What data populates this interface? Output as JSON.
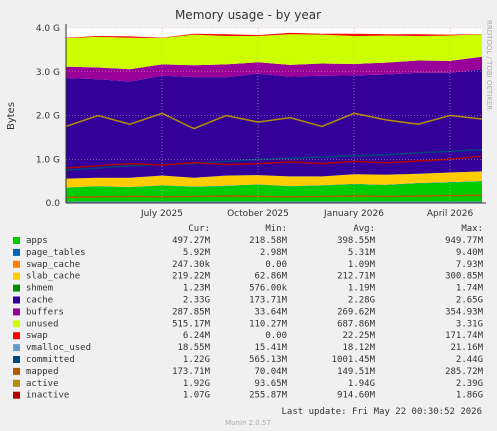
{
  "chart_data": {
    "type": "area",
    "title": "Memory usage - by year",
    "y_label": "Bytes",
    "side_label": "RRDTOOL / TOBI OETIKER",
    "legend_columns": [
      "Cur:",
      "Min:",
      "Avg:",
      "Max:"
    ],
    "last_update": "Last update: Fri May 22 00:30:52 2026",
    "footer": "Munin 2.0.57",
    "grid": true,
    "x": [
      "2025-04",
      "2025-05",
      "2025-06",
      "2025-07",
      "2025-08",
      "2025-09",
      "2025-10",
      "2025-11",
      "2025-12",
      "2026-01",
      "2026-02",
      "2026-03",
      "2026-04",
      "2026-05"
    ],
    "xlim": [
      "2025-04",
      "2026-05"
    ],
    "xticks": [
      {
        "value": "2025-07",
        "label": "July 2025"
      },
      {
        "value": "2025-10",
        "label": "October 2025"
      },
      {
        "value": "2026-01",
        "label": "January 2026"
      },
      {
        "value": "2026-04",
        "label": "April 2026"
      }
    ],
    "ylim": [
      0,
      4000000000
    ],
    "yticks": [
      {
        "value": 0,
        "label": "0.0"
      },
      {
        "value": 1000000000,
        "label": "1.0 G"
      },
      {
        "value": 2000000000,
        "label": "2.0 G"
      },
      {
        "value": 3000000000,
        "label": "3.0 G"
      },
      {
        "value": 4000000000,
        "label": "4.0 G"
      }
    ],
    "series": [
      {
        "name": "apps",
        "color": "#00cc00",
        "stacked": true,
        "cur": "497.27M",
        "min": "218.58M",
        "avg": "398.55M",
        "max": "949.77M",
        "values": [
          350000000,
          380000000,
          360000000,
          400000000,
          370000000,
          390000000,
          420000000,
          380000000,
          400000000,
          430000000,
          410000000,
          450000000,
          470000000,
          497000000
        ]
      },
      {
        "name": "page_tables",
        "color": "#0066b3",
        "stacked": true,
        "cur": "5.92M",
        "min": "2.98M",
        "avg": "5.31M",
        "max": "9.40M",
        "values": [
          5000000,
          5000000,
          5000000,
          5000000,
          5000000,
          5000000,
          5000000,
          5000000,
          5000000,
          6000000,
          6000000,
          6000000,
          6000000,
          6000000
        ]
      },
      {
        "name": "swap_cache",
        "color": "#ff8000",
        "stacked": true,
        "cur": "247.30k",
        "min": "0.00",
        "avg": "1.09M",
        "max": "7.93M",
        "values": [
          1000000,
          1000000,
          1000000,
          1000000,
          1000000,
          1000000,
          1000000,
          1000000,
          1000000,
          1000000,
          1000000,
          1000000,
          1000000,
          250000
        ]
      },
      {
        "name": "slab_cache",
        "color": "#ffcc00",
        "stacked": true,
        "cur": "219.22M",
        "min": "62.86M",
        "avg": "212.71M",
        "max": "300.85M",
        "values": [
          200000000,
          190000000,
          210000000,
          220000000,
          200000000,
          230000000,
          210000000,
          220000000,
          200000000,
          220000000,
          230000000,
          210000000,
          220000000,
          219000000
        ]
      },
      {
        "name": "shmem",
        "color": "#008f00",
        "stacked": true,
        "cur": "1.23M",
        "min": "576.00k",
        "avg": "1.19M",
        "max": "1.74M",
        "values": [
          1200000,
          1200000,
          1200000,
          1200000,
          1200000,
          1200000,
          1200000,
          1200000,
          1200000,
          1200000,
          1200000,
          1200000,
          1200000,
          1230000
        ]
      },
      {
        "name": "cache",
        "color": "#330099",
        "stacked": true,
        "cur": "2.33G",
        "min": "173.71M",
        "avg": "2.28G",
        "max": "2.65G",
        "values": [
          2300000000,
          2250000000,
          2200000000,
          2280000000,
          2300000000,
          2250000000,
          2320000000,
          2280000000,
          2300000000,
          2260000000,
          2290000000,
          2310000000,
          2280000000,
          2330000000
        ]
      },
      {
        "name": "buffers",
        "color": "#990099",
        "stacked": true,
        "cur": "287.85M",
        "min": "33.64M",
        "avg": "269.62M",
        "max": "354.93M",
        "values": [
          260000000,
          270000000,
          280000000,
          260000000,
          270000000,
          290000000,
          260000000,
          270000000,
          280000000,
          260000000,
          270000000,
          280000000,
          270000000,
          288000000
        ]
      },
      {
        "name": "unused",
        "color": "#ccff00",
        "stacked": true,
        "cur": "515.17M",
        "min": "110.27M",
        "avg": "687.86M",
        "max": "3.31G",
        "values": [
          650000000,
          700000000,
          720000000,
          600000000,
          700000000,
          650000000,
          600000000,
          700000000,
          660000000,
          640000000,
          620000000,
          560000000,
          580000000,
          515000000
        ]
      },
      {
        "name": "swap",
        "color": "#ff0000",
        "stacked": true,
        "cur": "6.24M",
        "min": "0.00",
        "avg": "22.25M",
        "max": "171.74M",
        "values": [
          10000000,
          20000000,
          30000000,
          10000000,
          20000000,
          40000000,
          20000000,
          30000000,
          20000000,
          50000000,
          30000000,
          40000000,
          20000000,
          6240000
        ]
      },
      {
        "name": "vmalloc_used",
        "color": "#6699cc",
        "stacked": false,
        "cur": "18.55M",
        "min": "15.41M",
        "avg": "18.12M",
        "max": "21.16M",
        "values": [
          18000000,
          18000000,
          18000000,
          18000000,
          18000000,
          18000000,
          18000000,
          18000000,
          18000000,
          18000000,
          18000000,
          18000000,
          18000000,
          18550000
        ]
      },
      {
        "name": "committed",
        "color": "#00487d",
        "stacked": false,
        "cur": "1.22G",
        "min": "565.13M",
        "avg": "1001.45M",
        "max": "2.44G",
        "values": [
          750000000,
          800000000,
          850000000,
          880000000,
          900000000,
          950000000,
          1000000000,
          1020000000,
          1050000000,
          1080000000,
          1100000000,
          1150000000,
          1180000000,
          1220000000
        ]
      },
      {
        "name": "mapped",
        "color": "#b35a00",
        "stacked": false,
        "cur": "173.71M",
        "min": "70.04M",
        "avg": "149.51M",
        "max": "285.72M",
        "values": [
          130000000,
          140000000,
          150000000,
          140000000,
          150000000,
          160000000,
          150000000,
          140000000,
          150000000,
          160000000,
          150000000,
          160000000,
          170000000,
          174000000
        ]
      },
      {
        "name": "active",
        "color": "#b38f00",
        "stacked": false,
        "cur": "1.92G",
        "min": "93.65M",
        "avg": "1.94G",
        "max": "2.39G",
        "values": [
          1750000000,
          2000000000,
          1800000000,
          2050000000,
          1700000000,
          2000000000,
          1850000000,
          1950000000,
          1750000000,
          2050000000,
          1900000000,
          1800000000,
          2000000000,
          1920000000
        ]
      },
      {
        "name": "inactive",
        "color": "#b30000",
        "stacked": false,
        "cur": "1.07G",
        "min": "255.87M",
        "avg": "914.60M",
        "max": "1.86G",
        "values": [
          800000000,
          850000000,
          900000000,
          870000000,
          920000000,
          880000000,
          900000000,
          940000000,
          900000000,
          950000000,
          920000000,
          960000000,
          1000000000,
          1070000000
        ]
      }
    ]
  }
}
